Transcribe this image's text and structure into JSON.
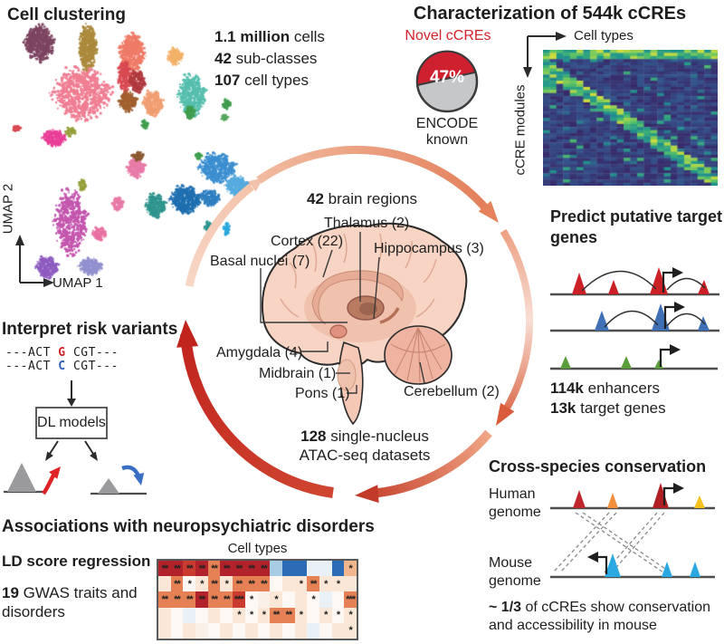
{
  "colors": {
    "accent_red": "#c1231d",
    "novel_red": "#d2232a",
    "pie_red": "#cf2030",
    "pie_gray": "#c6c7c9",
    "track_red": "#cc2027",
    "track_blue": "#3f6fb5",
    "track_green": "#5a9e3c",
    "cyan": "#2aa9e0",
    "orange": "#f28f3c",
    "yellow": "#f5c21e",
    "dark_red": "#b11f24",
    "text": "#1e1e1e"
  },
  "cell_clustering": {
    "title": "Cell clustering",
    "stats": [
      {
        "b": "1.1 million",
        "t": " cells"
      },
      {
        "b": "42",
        "t": " sub-classes"
      },
      {
        "b": "107",
        "t": " cell types"
      }
    ],
    "x_axis": "UMAP 1",
    "y_axis": "UMAP 2"
  },
  "characterization": {
    "title": "Characterization of 544k cCREs",
    "novel": "Novel cCREs",
    "pie_pct": "47%",
    "known": "ENCODE known",
    "hm_x": "Cell types",
    "hm_y": "cCRE modules"
  },
  "circle": {
    "top_b": "42",
    "top_t": " brain regions",
    "regions": [
      "Thalamus (2)",
      "Cortex (22)",
      "Hippocampus (3)",
      "Basal nuclei (7)",
      "Amygdala (4)",
      "Midbrain (1)",
      "Pons (1)",
      "Cerebellum (2)"
    ],
    "bottom_b": "128",
    "bottom_t": " single-nucleus",
    "bottom_t2": "ATAC-seq datasets"
  },
  "risk": {
    "title": "Interpret risk variants",
    "seq1": {
      "pre": "---ACT ",
      "var": "G",
      "post": " CGT---"
    },
    "seq2": {
      "pre": "---ACT ",
      "var": "C",
      "post": " CGT---"
    },
    "box": "DL models"
  },
  "predict": {
    "title1": "Predict putative target",
    "title2": "genes",
    "s1b": "114k",
    "s1": " enhancers",
    "s2b": "13k",
    "s2": " target genes"
  },
  "conservation": {
    "title": "Cross-species conservation",
    "g1a": "Human",
    "g1b": "genome",
    "g2a": "Mouse",
    "g2b": "genome",
    "nb": "~ 1/3",
    "n1": " of cCREs show conservation",
    "n2": "and accessibility in mouse"
  },
  "associations": {
    "title": "Associations with neuropsychiatric disorders",
    "sub": "LD score regression",
    "sb": "19",
    "s1": " GWAS traits and",
    "s2": "disorders",
    "hm_x": "Cell types"
  },
  "chart_data": [
    {
      "type": "pie",
      "title": "Novel cCREs share of 544k cCREs",
      "slices": [
        {
          "label": "Novel cCREs",
          "value": 47,
          "color": "#cf2030"
        },
        {
          "label": "ENCODE known",
          "value": 53,
          "color": "#c6c7c9"
        }
      ]
    },
    {
      "type": "heatmap",
      "name": "ldsc_gwas",
      "xlabel": "Cell types",
      "rows": 5,
      "cols": 16,
      "palette": {
        "DR": "#b2222b",
        "R": "#ca3a2e",
        "O": "#e58155",
        "LO": "#f2b68e",
        "CR": "#fae7d8",
        "W": "#fdf8f3",
        "PW": "#fbf0e8",
        "PB": "#e9f1f7",
        "LB": "#a9cce5",
        "MB": "#4e92c9",
        "DB": "#2b6cb5"
      },
      "cells": [
        [
          "DR",
          "DR",
          "R",
          "DR",
          "O",
          "DR",
          "DR",
          "DR",
          "DR",
          "LB",
          "DB",
          "DB",
          "PB",
          "PB",
          "DB",
          "LO"
        ],
        [
          "CR",
          "O",
          "W",
          "CR",
          "O",
          "CR",
          "O",
          "O",
          "O",
          "W",
          "CR",
          "CR",
          "O",
          "CR",
          "CR",
          "CR"
        ],
        [
          "O",
          "O",
          "O",
          "DR",
          "O",
          "O",
          "R",
          "W",
          "PW",
          "CR",
          "W",
          "CR",
          "W",
          "PB",
          "W",
          "O"
        ],
        [
          "CR",
          "W",
          "PB",
          "W",
          "CR",
          "W",
          "CR",
          "W",
          "CR",
          "O",
          "O",
          "CR",
          "W",
          "CR",
          "W",
          "CR"
        ],
        [
          "CR",
          "W",
          "CR",
          "PW",
          "W",
          "CR",
          "W",
          "CR",
          "W",
          "CR",
          "W",
          "CR",
          "PB",
          "W",
          "CR",
          "CR"
        ]
      ],
      "marks": [
        [
          "**",
          "**",
          "**",
          "**",
          "**",
          "**",
          "**",
          "**",
          "**",
          "",
          "",
          "",
          "",
          "",
          "",
          "*"
        ],
        [
          "",
          "**",
          "*",
          "*",
          "**",
          "*",
          "**",
          "**",
          "**",
          "",
          "",
          "*",
          "**",
          "*",
          "*",
          ""
        ],
        [
          "**",
          "**",
          "**",
          "**",
          "**",
          "**",
          "***",
          "*",
          "",
          "*",
          "",
          "",
          "*",
          "",
          "",
          "***"
        ],
        [
          "",
          "",
          "",
          "",
          "",
          "",
          "*",
          "*",
          "*",
          "**",
          "**",
          "*",
          "",
          "*",
          "*",
          "*"
        ],
        [
          "",
          "",
          "",
          "",
          "",
          "",
          "",
          "",
          "",
          "",
          "",
          "",
          "",
          "",
          "",
          "*"
        ]
      ]
    },
    {
      "type": "heatmap",
      "name": "ccre_modules",
      "style": "viridis",
      "xlabel": "Cell types",
      "ylabel": "cCRE modules",
      "rows": 44,
      "cols": 26,
      "seed": 7
    },
    {
      "type": "scatter",
      "name": "umap_clusters",
      "xlabel": "UMAP 1",
      "ylabel": "UMAP 2",
      "seed": 11,
      "clusters": [
        [
          39,
          26,
          16,
          20,
          "#7d4460"
        ],
        [
          92,
          30,
          10,
          26,
          "#ac8a3c"
        ],
        [
          141,
          36,
          14,
          21,
          "#ef7b67"
        ],
        [
          133,
          63,
          8,
          17,
          "#d94a52"
        ],
        [
          85,
          81,
          32,
          29,
          "#f07f93"
        ],
        [
          147,
          68,
          9,
          12,
          "#b13a3f"
        ],
        [
          136,
          90,
          10,
          11,
          "#a2602f"
        ],
        [
          164,
          92,
          11,
          14,
          "#f09e72"
        ],
        [
          188,
          40,
          9,
          9,
          "#f3b269"
        ],
        [
          207,
          83,
          15,
          23,
          "#56bfae"
        ],
        [
          205,
          102,
          5,
          8,
          "#3f9e4e"
        ],
        [
          245,
          93,
          5,
          5,
          "#3f9e4e"
        ],
        [
          243,
          108,
          4,
          4,
          "#56a85e"
        ],
        [
          55,
          130,
          13,
          9,
          "#e83f98"
        ],
        [
          73,
          124,
          6,
          5,
          "#96a03c"
        ],
        [
          145,
          163,
          10,
          11,
          "#e87ba8"
        ],
        [
          147,
          150,
          7,
          5,
          "#8a5a32"
        ],
        [
          86,
          182,
          4,
          7,
          "#96a03c"
        ],
        [
          235,
          163,
          20,
          16,
          "#3c8fd0"
        ],
        [
          257,
          183,
          13,
          11,
          "#56aade"
        ],
        [
          167,
          205,
          11,
          13,
          "#2f958d"
        ],
        [
          200,
          198,
          17,
          15,
          "#1f6fb0"
        ],
        [
          227,
          196,
          11,
          9,
          "#2f7fc1"
        ],
        [
          73,
          223,
          18,
          36,
          "#c457ae"
        ],
        [
          47,
          273,
          12,
          12,
          "#8f5cc0"
        ],
        [
          95,
          272,
          13,
          9,
          "#9290cf"
        ],
        [
          105,
          236,
          8,
          7,
          "#e870a0"
        ],
        [
          125,
          203,
          6,
          8,
          "#e87ba8"
        ],
        [
          225,
          228,
          5,
          5,
          "#2f958d"
        ],
        [
          13,
          120,
          5,
          4,
          "#d94a52"
        ],
        [
          155,
          115,
          4,
          5,
          "#3f9e4e"
        ],
        [
          245,
          230,
          4,
          7,
          "#29a8dc"
        ],
        [
          215,
          150,
          4,
          4,
          "#3f9e4e"
        ]
      ]
    }
  ]
}
